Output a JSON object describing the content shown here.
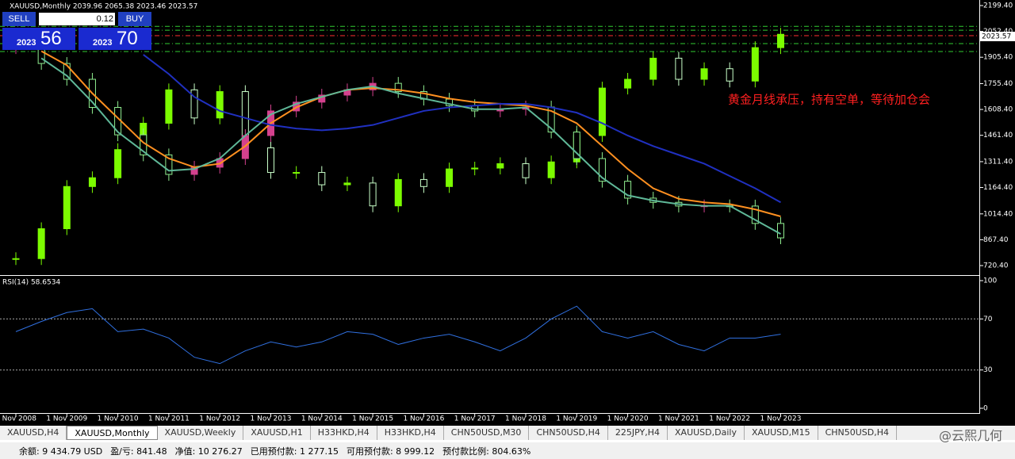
{
  "header": {
    "symbol_info": "XAUUSD,Monthly  2039.96 2065.38 2023.46 2023.57"
  },
  "trade_panel": {
    "sell": "SELL",
    "lot": "0.12",
    "buy": "BUY",
    "bid_prefix": "2023",
    "bid": "56",
    "ask_prefix": "2023",
    "ask": "70"
  },
  "chart_data": [
    {
      "type": "candlestick",
      "annotation": "黄金月线承压，持有空单，等待加仓会",
      "ylim": [
        720.4,
        2199.4
      ],
      "yticks": [
        {
          "value": 2199.4,
          "label": "2199.40"
        },
        {
          "value": 2052.4,
          "label": "2052.40"
        },
        {
          "value": 1905.4,
          "label": "1905.40"
        },
        {
          "value": 1755.4,
          "label": "1755.40"
        },
        {
          "value": 1608.4,
          "label": "1608.40"
        },
        {
          "value": 1461.4,
          "label": "1461.40"
        },
        {
          "value": 1311.4,
          "label": "1311.40"
        },
        {
          "value": 1164.4,
          "label": "1164.40"
        },
        {
          "value": 1014.4,
          "label": "1014.40"
        },
        {
          "value": 867.4,
          "label": "867.40"
        },
        {
          "value": 720.4,
          "label": "720.40"
        }
      ],
      "current_price": {
        "value": 2023.57,
        "label": "2023.57"
      },
      "levels": [
        {
          "value": 2081,
          "color": "#32cd32"
        },
        {
          "value": 2059,
          "color": "#32cd32"
        },
        {
          "value": 2028,
          "color": "#ff3030"
        },
        {
          "value": 1983,
          "color": "#32cd32"
        },
        {
          "value": 1938,
          "color": "#32cd32"
        }
      ],
      "series": [
        {
          "color": "#7cfc00",
          "down_color": "#c8ffc8",
          "values": [
            760,
            930,
            1170,
            1220,
            1380,
            1530,
            1720,
            1560,
            1710,
            1390,
            1250,
            1250,
            1180,
            1190,
            1060,
            1210,
            1170,
            1270,
            1275,
            1300,
            1220,
            1310,
            1460,
            1730,
            1780,
            1900,
            1780,
            1840,
            1770,
            1960,
            2036
          ]
        },
        {
          "color": "#d4418e",
          "down_color": "#90ee90",
          "values": [
            1960,
            1870,
            1780,
            1620,
            1464,
            1350,
            1239,
            1280,
            1329,
            1460,
            1600,
            1650,
            1690,
            1720,
            1757,
            1710,
            1667,
            1630,
            1600,
            1610,
            1622,
            1480,
            1329,
            1200,
            1104,
            1080,
            1059,
            1060,
            1059,
            960,
            878
          ]
        }
      ],
      "lines": [
        {
          "color": "#ff9020",
          "values": [
            null,
            1940,
            1860,
            1700,
            1560,
            1420,
            1330,
            1280,
            1300,
            1400,
            1530,
            1620,
            1680,
            1720,
            1730,
            1720,
            1700,
            1670,
            1650,
            1640,
            1630,
            1600,
            1530,
            1400,
            1270,
            1160,
            1100,
            1080,
            1070,
            1040,
            1000
          ]
        },
        {
          "color": "#2030c0",
          "values": [
            null,
            null,
            null,
            null,
            null,
            1920,
            1810,
            1680,
            1600,
            1560,
            1520,
            1500,
            1490,
            1500,
            1520,
            1560,
            1600,
            1620,
            1630,
            1640,
            1640,
            1620,
            1590,
            1530,
            1460,
            1400,
            1350,
            1300,
            1230,
            1160,
            1080
          ]
        },
        {
          "color": "#5fb898",
          "values": [
            null,
            1900,
            1800,
            1650,
            1480,
            1370,
            1260,
            1270,
            1330,
            1460,
            1580,
            1640,
            1680,
            1720,
            1740,
            1700,
            1670,
            1640,
            1610,
            1610,
            1620,
            1500,
            1360,
            1220,
            1120,
            1090,
            1070,
            1060,
            1060,
            980,
            900
          ]
        }
      ]
    },
    {
      "type": "line",
      "title": "RSI(14) 58.6534",
      "ylim": [
        0,
        100
      ],
      "yticks": [
        100,
        70,
        30,
        0
      ],
      "levels": [
        70,
        30
      ],
      "color": "#3070e0",
      "values": [
        60,
        68,
        75,
        78,
        60,
        62,
        55,
        40,
        35,
        45,
        52,
        48,
        52,
        60,
        58,
        50,
        55,
        58,
        52,
        45,
        55,
        70,
        80,
        60,
        55,
        60,
        50,
        45,
        55,
        55,
        58
      ],
      "x_labels": [
        "1 Nov 2008",
        "1 Nov 2009",
        "1 Nov 2010",
        "1 Nov 2011",
        "1 Nov 2012",
        "1 Nov 2013",
        "1 Nov 2014",
        "1 Nov 2015",
        "1 Nov 2016",
        "1 Nov 2017",
        "1 Nov 2018",
        "1 Nov 2019",
        "1 Nov 2020",
        "1 Nov 2021",
        "1 Nov 2022",
        "1 Nov 2023"
      ]
    }
  ],
  "tabs": [
    "XAUUSD,H4",
    "XAUUSD,Monthly",
    "XAUUSD,Weekly",
    "XAUUSD,H1",
    "H33HKD,H4",
    "H33HKD,H4",
    "CHN50USD,M30",
    "CHN50USD,H4",
    "225JPY,H4",
    "XAUUSD,Daily",
    "XAUUSD,M15",
    "CHN50USD,H4"
  ],
  "watermark": "@云熙几何",
  "status": [
    "余额: 9 434.79 USD",
    "盈/亏: 841.48",
    "净值: 10 276.27",
    "已用预付款: 1 277.15",
    "可用预付款: 8 999.12",
    "预付款比例: 804.63%"
  ]
}
